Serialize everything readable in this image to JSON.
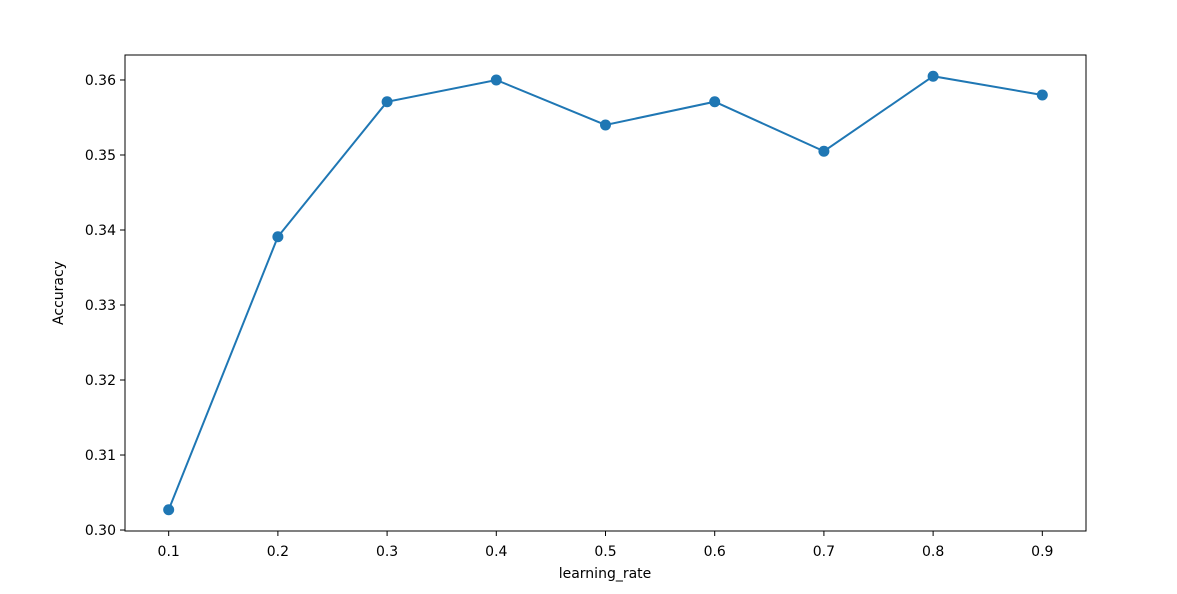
{
  "chart_data": {
    "type": "line",
    "x_label": "learning_rate",
    "y_label": "Accuracy",
    "x": [
      0.1,
      0.2,
      0.3,
      0.4,
      0.5,
      0.6,
      0.7,
      0.8,
      0.9
    ],
    "series": [
      {
        "color": "#1f77b4",
        "values": [
          0.3027,
          0.3391,
          0.3571,
          0.36,
          0.354,
          0.3571,
          0.3505,
          0.3605,
          0.358
        ]
      }
    ],
    "xlim": [
      0.06,
      0.94
    ],
    "xticks": [
      0.1,
      0.2,
      0.3,
      0.4,
      0.5,
      0.6,
      0.7,
      0.8,
      0.9
    ],
    "ylim": [
      0.29987,
      0.36333
    ],
    "yticks": [
      {
        "value": 0.3,
        "label": "0.30"
      },
      0.31,
      0.32,
      0.33,
      0.34,
      0.35,
      0.36
    ],
    "markers": true,
    "grid": false
  }
}
